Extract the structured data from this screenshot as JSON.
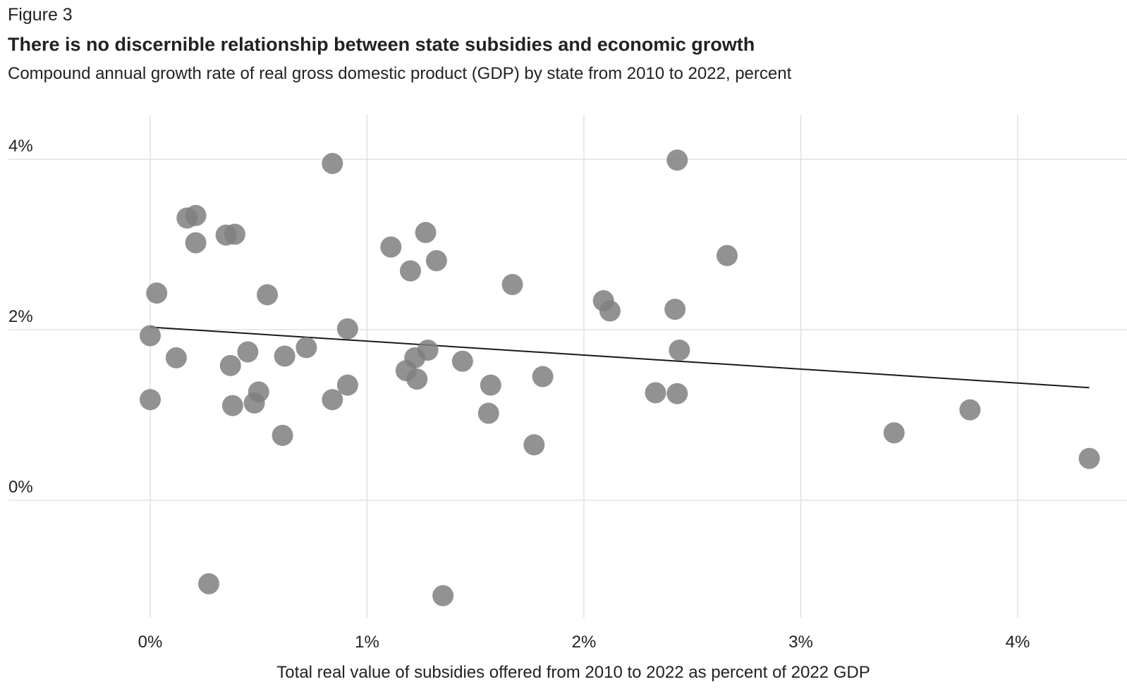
{
  "figure_label": "Figure 3",
  "chart_data": {
    "type": "scatter",
    "title": "There is no discernible relationship between state subsidies and economic growth",
    "subtitle": "Compound annual growth rate of real gross domestic product (GDP) by state from 2010 to 2022, percent",
    "xlabel": "Total real value of subsidies offered from 2010 to 2022 as percent of 2022 GDP",
    "ylabel": "",
    "xlim": [
      -0.66,
      4.5
    ],
    "ylim": [
      -1.5,
      4.5
    ],
    "x_ticks": [
      {
        "value": 0,
        "label": "0%"
      },
      {
        "value": 1,
        "label": "1%"
      },
      {
        "value": 2,
        "label": "2%"
      },
      {
        "value": 3,
        "label": "3%"
      },
      {
        "value": 4,
        "label": "4%"
      }
    ],
    "y_ticks": [
      {
        "value": 0,
        "label": "0%"
      },
      {
        "value": 2,
        "label": "2%"
      },
      {
        "value": 4,
        "label": "4%"
      }
    ],
    "grid": true,
    "colors": {
      "points": "#7f7f7f",
      "trend_line": "#1a1a1a",
      "grid": "#dddddd"
    },
    "x": [
      0.84,
      2.43,
      0.21,
      0.17,
      0.39,
      0.35,
      0.21,
      1.27,
      1.11,
      1.32,
      1.2,
      2.66,
      1.67,
      0.03,
      0.54,
      2.09,
      2.12,
      2.42,
      0.91,
      0.0,
      0.72,
      0.45,
      1.28,
      0.12,
      0.62,
      2.44,
      1.22,
      1.44,
      0.37,
      1.18,
      1.81,
      1.23,
      0.91,
      1.57,
      0.5,
      2.33,
      2.43,
      0.0,
      0.84,
      0.48,
      0.38,
      3.78,
      1.56,
      0.61,
      3.43,
      1.77,
      4.33,
      0.27,
      1.35
    ],
    "y": [
      3.95,
      3.99,
      3.34,
      3.31,
      3.12,
      3.11,
      3.02,
      3.14,
      2.97,
      2.81,
      2.69,
      2.87,
      2.53,
      2.43,
      2.41,
      2.34,
      2.22,
      2.24,
      2.01,
      1.93,
      1.79,
      1.74,
      1.76,
      1.67,
      1.69,
      1.76,
      1.67,
      1.63,
      1.58,
      1.52,
      1.45,
      1.42,
      1.35,
      1.35,
      1.27,
      1.26,
      1.25,
      1.18,
      1.18,
      1.14,
      1.11,
      1.06,
      1.02,
      0.76,
      0.79,
      0.65,
      0.49,
      -0.98,
      -1.12
    ],
    "trend_line": {
      "x": [
        0.0,
        4.33
      ],
      "y": [
        2.03,
        1.32
      ]
    }
  }
}
